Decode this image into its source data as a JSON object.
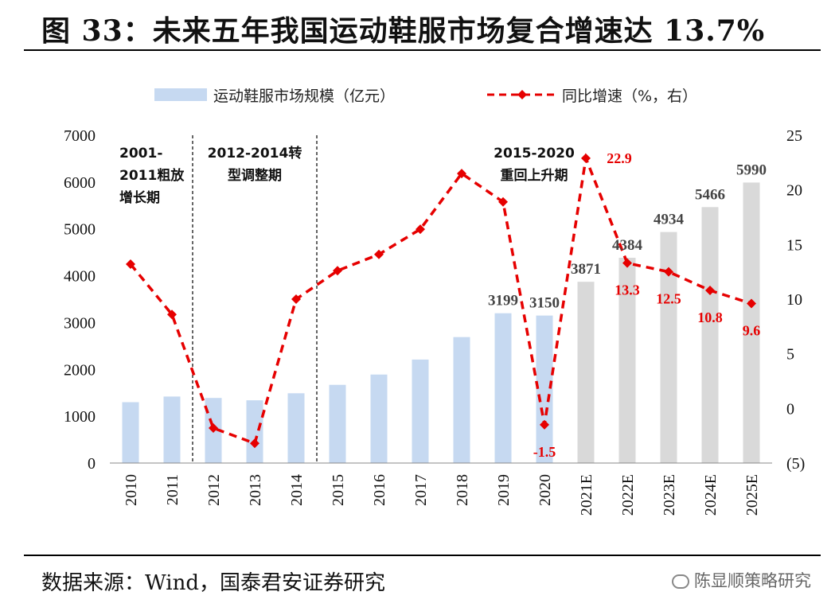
{
  "header": {
    "title": "图 33：未来五年我国运动鞋服市场复合增速达 13.7%"
  },
  "footer": {
    "source": "数据来源：Wind，国泰君安证券研究",
    "watermark": "陈显顺策略研究"
  },
  "colors": {
    "actual_bar": "#c6d9f1",
    "forecast_bar": "#d9d9d9",
    "line": "#e60000",
    "neg_label": "#e60000"
  },
  "chart_data": {
    "type": "bar",
    "categories": [
      "2010",
      "2011",
      "2012",
      "2013",
      "2014",
      "2015",
      "2016",
      "2017",
      "2018",
      "2019",
      "2020",
      "2021E",
      "2022E",
      "2023E",
      "2024E",
      "2025E"
    ],
    "series": [
      {
        "name": "运动鞋服市场规模（亿元）",
        "axis": "left",
        "kind": "bar",
        "values": [
          1300,
          1420,
          1390,
          1340,
          1490,
          1670,
          1890,
          2210,
          2690,
          3199,
          3150,
          3871,
          4384,
          4934,
          5466,
          5990
        ],
        "forecast_from_index": 11,
        "labels": [
          null,
          null,
          null,
          null,
          null,
          null,
          null,
          null,
          null,
          "3199",
          "3150",
          "3871",
          "4384",
          "4934",
          "5466",
          "5990"
        ]
      },
      {
        "name": "同比增速（%，右）",
        "axis": "right",
        "kind": "line",
        "values": [
          13.2,
          8.6,
          -1.8,
          -3.2,
          10.0,
          12.6,
          14.1,
          16.4,
          21.5,
          18.9,
          -1.5,
          22.9,
          13.3,
          12.5,
          10.8,
          9.6
        ],
        "labels": [
          null,
          null,
          null,
          null,
          null,
          null,
          null,
          null,
          null,
          null,
          "-1.5",
          "22.9",
          "13.3",
          "12.5",
          "10.8",
          "9.6"
        ]
      }
    ],
    "ylim_left": [
      0,
      7000
    ],
    "yticks_left": [
      "0",
      "1000",
      "2000",
      "3000",
      "4000",
      "5000",
      "6000",
      "7000"
    ],
    "ylim_right": [
      -5,
      25
    ],
    "yticks_right": [
      "(5)",
      "0",
      "5",
      "10",
      "15",
      "20",
      "25"
    ],
    "periods": [
      {
        "label_lines": [
          "2001-",
          "2011粗放",
          "增长期"
        ]
      },
      {
        "label_lines": [
          "2012-2014转",
          "型调整期"
        ]
      },
      {
        "label_lines": [
          "2015-2020",
          "重回上升期"
        ]
      }
    ],
    "legend": {
      "position": "top-center"
    }
  }
}
